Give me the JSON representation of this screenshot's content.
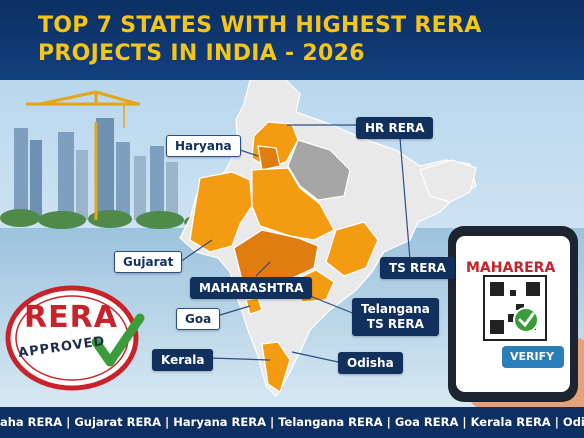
{
  "title": {
    "line1": "TOP 7 STATES WITH HIGHEST RERA",
    "line2": "PROJECTS IN INDIA - 2026"
  },
  "labels": {
    "hr_rera": "HR RERA",
    "haryana": "Haryana",
    "gujarat": "Gujarat",
    "maharashtra": "MAHARASHTRA",
    "goa": "Goa",
    "kerala": "Kerala",
    "odisha": "Odisha",
    "ts_rera": "TS RERA",
    "telangana_line1": "Telangana",
    "telangana_line2": "TS RERA"
  },
  "stamp": {
    "word1": "RERA",
    "word2": "APPROVED"
  },
  "phone": {
    "app_title": "MAHARERA",
    "button": "VERIFY"
  },
  "footer": {
    "text": "laha RERA | Gujarat RERA | Haryana RERA | Telangana RERA | Goa RERA | Kerala RERA | Odisha RERA"
  },
  "colors": {
    "header": "#123f7d",
    "title": "#f5c518",
    "highlight_state": "#f39c12",
    "dark_state": "#e07d10",
    "other_state": "#e9e9e9",
    "grey_state": "#a6a6a6",
    "stamp_red": "#c8222a",
    "check_green": "#3a9d3a",
    "footer": "#0d2f61"
  }
}
